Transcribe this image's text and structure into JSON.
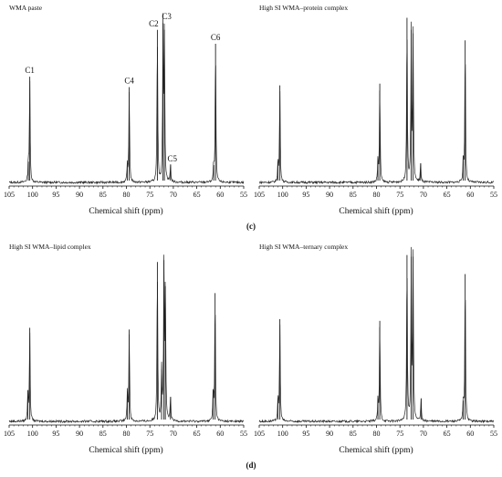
{
  "chart_data": [
    {
      "type": "line",
      "title": "WMA paste",
      "xlabel": "Chemical shift (ppm)",
      "ylabel": "",
      "xlim": [
        105,
        55
      ],
      "x_reversed": true,
      "x_ticks": [
        "105",
        "100",
        "95",
        "90",
        "85",
        "80",
        "75",
        "70",
        "65",
        "60",
        "55"
      ],
      "grid": false,
      "peaks": [
        {
          "label": "C1",
          "x": 100.6,
          "h": 0.61
        },
        {
          "label": "",
          "x": 100.9,
          "h": 0.12
        },
        {
          "label": "C4",
          "x": 79.4,
          "h": 0.55
        },
        {
          "label": "",
          "x": 79.8,
          "h": 0.1
        },
        {
          "label": "C2",
          "x": 73.4,
          "h": 0.88
        },
        {
          "label": "C3",
          "x": 72.2,
          "h": 0.92
        },
        {
          "label": "",
          "x": 71.9,
          "h": 0.88
        },
        {
          "label": "C5",
          "x": 70.6,
          "h": 0.1
        },
        {
          "label": "C6",
          "x": 61.0,
          "h": 0.8
        },
        {
          "label": "",
          "x": 61.4,
          "h": 0.1
        }
      ]
    },
    {
      "type": "line",
      "title": "High SI WMA–protein complex",
      "xlabel": "Chemical shift (ppm)",
      "ylabel": "",
      "xlim": [
        105,
        55
      ],
      "x_reversed": true,
      "x_ticks": [
        "105",
        "100",
        "95",
        "90",
        "85",
        "80",
        "75",
        "70",
        "65",
        "60",
        "55"
      ],
      "grid": false,
      "peaks": [
        {
          "x": 100.6,
          "h": 0.56
        },
        {
          "x": 101.0,
          "h": 0.12
        },
        {
          "x": 79.3,
          "h": 0.57
        },
        {
          "x": 79.7,
          "h": 0.13
        },
        {
          "x": 73.5,
          "h": 0.95
        },
        {
          "x": 72.6,
          "h": 0.88
        },
        {
          "x": 72.2,
          "h": 0.86
        },
        {
          "x": 70.6,
          "h": 0.11
        },
        {
          "x": 61.1,
          "h": 0.82
        },
        {
          "x": 61.5,
          "h": 0.14
        }
      ]
    },
    {
      "type": "line",
      "title": "High SI WMA–lipid complex",
      "xlabel": "Chemical shift (ppm)",
      "ylabel": "",
      "xlim": [
        105,
        55
      ],
      "x_reversed": true,
      "x_ticks": [
        "105",
        "100",
        "95",
        "90",
        "85",
        "80",
        "75",
        "70",
        "65",
        "60",
        "55"
      ],
      "grid": false,
      "peaks": [
        {
          "x": 100.6,
          "h": 0.54
        },
        {
          "x": 101.0,
          "h": 0.18
        },
        {
          "x": 79.4,
          "h": 0.53
        },
        {
          "x": 79.8,
          "h": 0.17
        },
        {
          "x": 73.4,
          "h": 0.92
        },
        {
          "x": 72.5,
          "h": 0.3
        },
        {
          "x": 72.0,
          "h": 0.93
        },
        {
          "x": 71.7,
          "h": 0.78
        },
        {
          "x": 70.6,
          "h": 0.14
        },
        {
          "x": 61.1,
          "h": 0.74
        },
        {
          "x": 61.5,
          "h": 0.18
        }
      ]
    },
    {
      "type": "line",
      "title": "High SI WMA–ternary complex",
      "xlabel": "Chemical shift (ppm)",
      "ylabel": "",
      "xlim": [
        105,
        55
      ],
      "x_reversed": true,
      "x_ticks": [
        "105",
        "100",
        "95",
        "90",
        "85",
        "80",
        "75",
        "70",
        "65",
        "60",
        "55"
      ],
      "grid": false,
      "peaks": [
        {
          "x": 100.6,
          "h": 0.59
        },
        {
          "x": 101.0,
          "h": 0.13
        },
        {
          "x": 79.3,
          "h": 0.58
        },
        {
          "x": 79.7,
          "h": 0.12
        },
        {
          "x": 73.5,
          "h": 0.96
        },
        {
          "x": 72.6,
          "h": 0.95
        },
        {
          "x": 72.2,
          "h": 0.95
        },
        {
          "x": 70.5,
          "h": 0.13
        },
        {
          "x": 61.1,
          "h": 0.85
        },
        {
          "x": 61.5,
          "h": 0.12
        }
      ]
    }
  ],
  "captions": [
    "(c)",
    "(d)"
  ]
}
